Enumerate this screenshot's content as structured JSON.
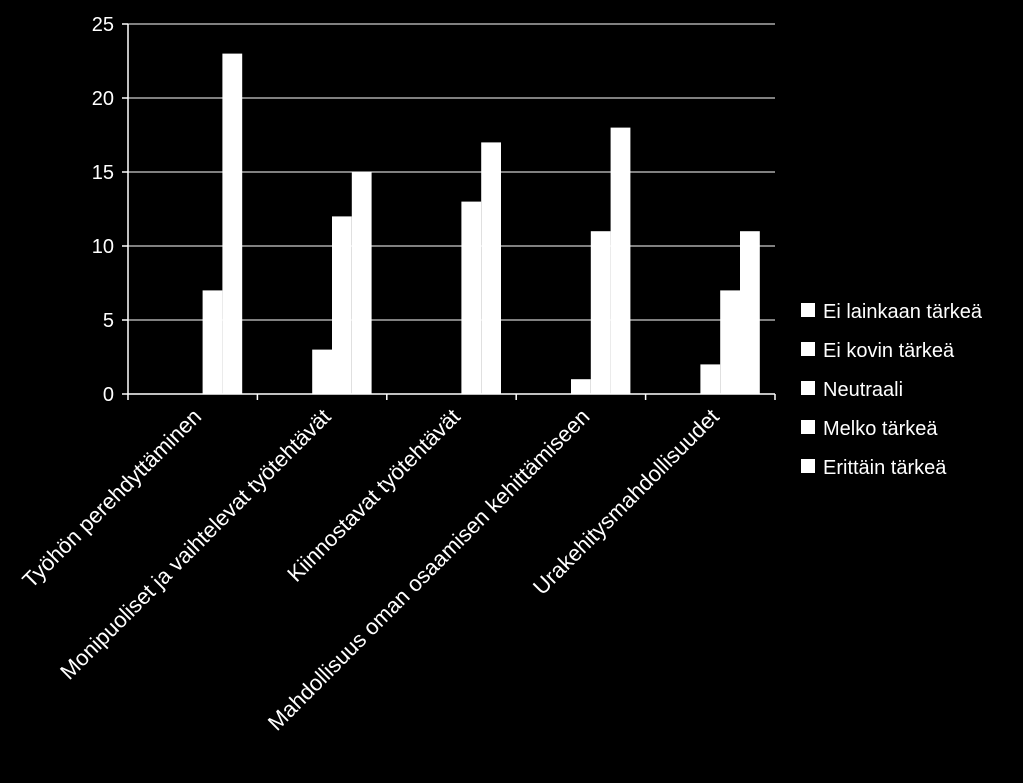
{
  "chart_data": {
    "type": "bar",
    "categories": [
      "Työhön perehdyttäminen",
      "Monipuoliset ja vaihtelevat työtehtävät",
      "Kiinnostavat työtehtävät",
      "Mahdollisuus oman osaamisen kehittämiseen",
      "Urakehitysmahdollisuudet"
    ],
    "series": [
      {
        "name": "Ei lainkaan tärkeä",
        "values": [
          0,
          0,
          0,
          0,
          0
        ]
      },
      {
        "name": "Ei kovin tärkeä",
        "values": [
          0,
          0,
          0,
          0,
          0
        ]
      },
      {
        "name": "Neutraali",
        "values": [
          0,
          3,
          0,
          1,
          2
        ]
      },
      {
        "name": "Melko tärkeä",
        "values": [
          7,
          12,
          13,
          11,
          7
        ]
      },
      {
        "name": "Erittäin tärkeä",
        "values": [
          23,
          15,
          17,
          18,
          11
        ]
      }
    ],
    "yticks": [
      0,
      5,
      10,
      15,
      20,
      25
    ],
    "ylim": [
      0,
      25
    ],
    "grid": true,
    "legend_position": "right",
    "bar_color": "#ffffff",
    "background": "#000000",
    "gridline_color": "#ffffff"
  }
}
